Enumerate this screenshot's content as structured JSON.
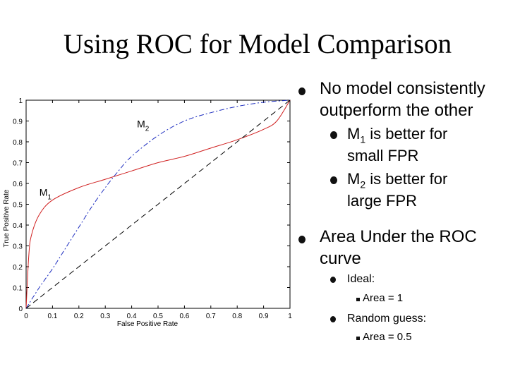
{
  "slide": {
    "title": "Using ROC for Model Comparison"
  },
  "bullets": {
    "b1": {
      "line1": "No model consistently",
      "line2": "outperform the other"
    },
    "b1a": {
      "pre": "M",
      "sub": "1",
      "post": " is better for",
      "line2": "small FPR"
    },
    "b1b": {
      "pre": "M",
      "sub": "2",
      "post": " is better for",
      "line2": "large FPR"
    },
    "b2": {
      "line1": "Area Under the ROC",
      "line2": "curve"
    },
    "b2a": "Ideal:",
    "b2a_i": "Area = 1",
    "b2b": "Random guess:",
    "b2b_i": "Area = 0.5"
  },
  "chart_data": {
    "type": "line",
    "xlabel": "False Positive Rate",
    "ylabel": "True Positive Rate",
    "xlim": [
      0,
      1
    ],
    "ylim": [
      0,
      1
    ],
    "xticks": [
      "0",
      "0.1",
      "0.2",
      "0.3",
      "0.4",
      "0.5",
      "0.6",
      "0.7",
      "0.8",
      "0.9",
      "1"
    ],
    "yticks": [
      "0",
      "0.1",
      "0.2",
      "0.3",
      "0.4",
      "0.5",
      "0.6",
      "0.7",
      "0.8",
      "0.9",
      "1"
    ],
    "series": [
      {
        "name": "M1",
        "label_main": "M",
        "label_sub": "1",
        "label_at": [
          0.05,
          0.54
        ],
        "color": "#d02020",
        "style": "solid",
        "x": [
          0,
          0.01,
          0.02,
          0.05,
          0.1,
          0.2,
          0.3,
          0.4,
          0.5,
          0.6,
          0.7,
          0.8,
          0.9,
          0.95,
          1
        ],
        "y": [
          0,
          0.25,
          0.35,
          0.45,
          0.52,
          0.58,
          0.62,
          0.66,
          0.7,
          0.73,
          0.77,
          0.81,
          0.86,
          0.9,
          1
        ]
      },
      {
        "name": "M2",
        "label_main": "M",
        "label_sub": "2",
        "label_at": [
          0.42,
          0.87
        ],
        "color": "#2030c0",
        "style": "dashdot",
        "x": [
          0,
          0.05,
          0.1,
          0.15,
          0.2,
          0.25,
          0.3,
          0.35,
          0.4,
          0.5,
          0.6,
          0.7,
          0.8,
          0.9,
          1
        ],
        "y": [
          0,
          0.1,
          0.19,
          0.29,
          0.39,
          0.49,
          0.58,
          0.66,
          0.73,
          0.83,
          0.9,
          0.94,
          0.97,
          0.99,
          1
        ]
      },
      {
        "name": "Random",
        "color": "#000000",
        "style": "dashed",
        "x": [
          0,
          1
        ],
        "y": [
          0,
          1
        ]
      }
    ]
  },
  "colors": {
    "m1": "#d02020",
    "m2": "#2030c0",
    "diag": "#000000"
  }
}
